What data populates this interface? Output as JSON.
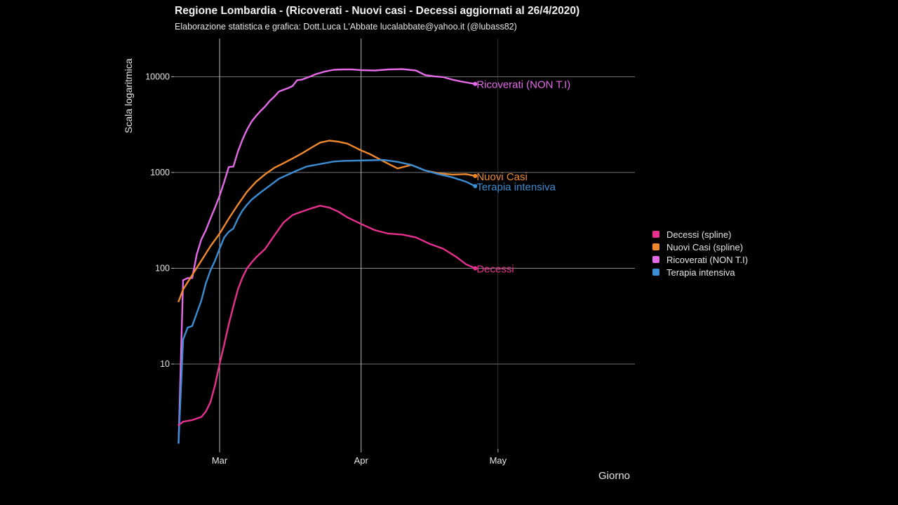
{
  "chart_data": {
    "type": "line",
    "title": "Regione Lombardia  - (Ricoverati - Nuovi casi - Decessi aggiornati al 26/4/2020)",
    "subtitle": "Elaborazione statistica e grafica: Dott.Luca L'Abbate  lucalabbate@yahoo.it  (@lubass82)",
    "ylabel": "Scala logaritmica",
    "xlabel": "Giorno",
    "y_scale": "log",
    "ylim": [
      1.3,
      25000
    ],
    "xlim": [
      "2020-02-20",
      "2020-05-31"
    ],
    "y_ticks": [
      10,
      100,
      1000,
      10000
    ],
    "y_tick_labels": [
      "10",
      "100",
      "1000",
      "10000"
    ],
    "x_ticks": [
      "2020-03-01",
      "2020-04-01",
      "2020-05-01"
    ],
    "x_tick_labels": [
      "Mar",
      "Apr",
      "May"
    ],
    "grid": true,
    "legend_position": "right",
    "series": [
      {
        "name": "Ricoverati (NON T.I)",
        "legend": "Ricoverati (NON T.I)",
        "end_label": "Ricoverati (NON T.I)",
        "color": "#e46ae8",
        "x": [
          "2020-02-21",
          "2020-02-22",
          "2020-02-23",
          "2020-02-24",
          "2020-02-25",
          "2020-02-26",
          "2020-02-27",
          "2020-02-28",
          "2020-02-29",
          "2020-03-01",
          "2020-03-02",
          "2020-03-03",
          "2020-03-04",
          "2020-03-05",
          "2020-03-06",
          "2020-03-07",
          "2020-03-08",
          "2020-03-09",
          "2020-03-10",
          "2020-03-11",
          "2020-03-12",
          "2020-03-13",
          "2020-03-14",
          "2020-03-15",
          "2020-03-16",
          "2020-03-17",
          "2020-03-18",
          "2020-03-19",
          "2020-03-20",
          "2020-03-21",
          "2020-03-22",
          "2020-03-24",
          "2020-03-26",
          "2020-03-28",
          "2020-03-30",
          "2020-04-01",
          "2020-04-04",
          "2020-04-07",
          "2020-04-10",
          "2020-04-13",
          "2020-04-15",
          "2020-04-17",
          "2020-04-19",
          "2020-04-21",
          "2020-04-23",
          "2020-04-26"
        ],
        "values": [
          1.5,
          75,
          79,
          79,
          140,
          200,
          250,
          330,
          430,
          570,
          800,
          1140,
          1150,
          1650,
          2200,
          2800,
          3400,
          3900,
          4400,
          4900,
          5600,
          6200,
          7000,
          7300,
          7600,
          8000,
          9200,
          9300,
          9700,
          10100,
          10600,
          11300,
          11800,
          11900,
          11900,
          11700,
          11600,
          11900,
          12000,
          11600,
          10400,
          10100,
          9900,
          9300,
          8900,
          8400
        ]
      },
      {
        "name": "Nuovi Casi (spline)",
        "legend": "Nuovi Casi (spline)",
        "end_label": "Nuovi Casi",
        "color": "#f0892e",
        "x": [
          "2020-02-21",
          "2020-02-22",
          "2020-02-24",
          "2020-02-26",
          "2020-02-28",
          "2020-03-01",
          "2020-03-03",
          "2020-03-05",
          "2020-03-07",
          "2020-03-09",
          "2020-03-11",
          "2020-03-13",
          "2020-03-15",
          "2020-03-17",
          "2020-03-19",
          "2020-03-21",
          "2020-03-23",
          "2020-03-25",
          "2020-03-27",
          "2020-03-29",
          "2020-04-01",
          "2020-04-03",
          "2020-04-06",
          "2020-04-09",
          "2020-04-12",
          "2020-04-15",
          "2020-04-18",
          "2020-04-21",
          "2020-04-24",
          "2020-04-26"
        ],
        "values": [
          45,
          60,
          85,
          120,
          170,
          230,
          330,
          460,
          630,
          800,
          960,
          1120,
          1250,
          1400,
          1580,
          1800,
          2050,
          2150,
          2100,
          2000,
          1700,
          1550,
          1300,
          1100,
          1200,
          1050,
          980,
          950,
          960,
          920
        ]
      },
      {
        "name": "Terapia intensiva",
        "legend": "Terapia intensiva",
        "end_label": "Terapia intensiva",
        "color": "#3b8ed4",
        "x": [
          "2020-02-21",
          "2020-02-22",
          "2020-02-23",
          "2020-02-24",
          "2020-02-25",
          "2020-02-26",
          "2020-02-27",
          "2020-02-28",
          "2020-02-29",
          "2020-03-01",
          "2020-03-02",
          "2020-03-03",
          "2020-03-04",
          "2020-03-05",
          "2020-03-06",
          "2020-03-07",
          "2020-03-08",
          "2020-03-10",
          "2020-03-12",
          "2020-03-14",
          "2020-03-16",
          "2020-03-18",
          "2020-03-20",
          "2020-03-22",
          "2020-03-24",
          "2020-03-26",
          "2020-03-28",
          "2020-03-31",
          "2020-04-03",
          "2020-04-06",
          "2020-04-09",
          "2020-04-12",
          "2020-04-15",
          "2020-04-18",
          "2020-04-21",
          "2020-04-24",
          "2020-04-26"
        ],
        "values": [
          1.5,
          18,
          24,
          25,
          34,
          46,
          70,
          95,
          120,
          160,
          210,
          240,
          260,
          330,
          400,
          460,
          520,
          620,
          730,
          860,
          950,
          1050,
          1150,
          1200,
          1250,
          1300,
          1320,
          1330,
          1340,
          1350,
          1290,
          1200,
          1050,
          960,
          890,
          800,
          720
        ]
      },
      {
        "name": "Decessi (spline)",
        "legend": "Decessi (spline)",
        "end_label": "Decessi",
        "color": "#e8308f",
        "x": [
          "2020-02-21",
          "2020-02-22",
          "2020-02-24",
          "2020-02-26",
          "2020-02-27",
          "2020-02-28",
          "2020-02-29",
          "2020-03-01",
          "2020-03-02",
          "2020-03-03",
          "2020-03-04",
          "2020-03-05",
          "2020-03-06",
          "2020-03-07",
          "2020-03-08",
          "2020-03-09",
          "2020-03-11",
          "2020-03-13",
          "2020-03-15",
          "2020-03-17",
          "2020-03-19",
          "2020-03-21",
          "2020-03-23",
          "2020-03-25",
          "2020-03-27",
          "2020-03-29",
          "2020-04-01",
          "2020-04-04",
          "2020-04-07",
          "2020-04-10",
          "2020-04-13",
          "2020-04-16",
          "2020-04-19",
          "2020-04-22",
          "2020-04-24",
          "2020-04-26"
        ],
        "values": [
          2.3,
          2.5,
          2.6,
          2.8,
          3.2,
          4.0,
          6,
          10,
          16,
          26,
          40,
          60,
          80,
          100,
          115,
          130,
          160,
          220,
          300,
          360,
          390,
          420,
          450,
          430,
          390,
          340,
          290,
          250,
          230,
          225,
          210,
          180,
          160,
          130,
          110,
          100
        ]
      }
    ]
  }
}
